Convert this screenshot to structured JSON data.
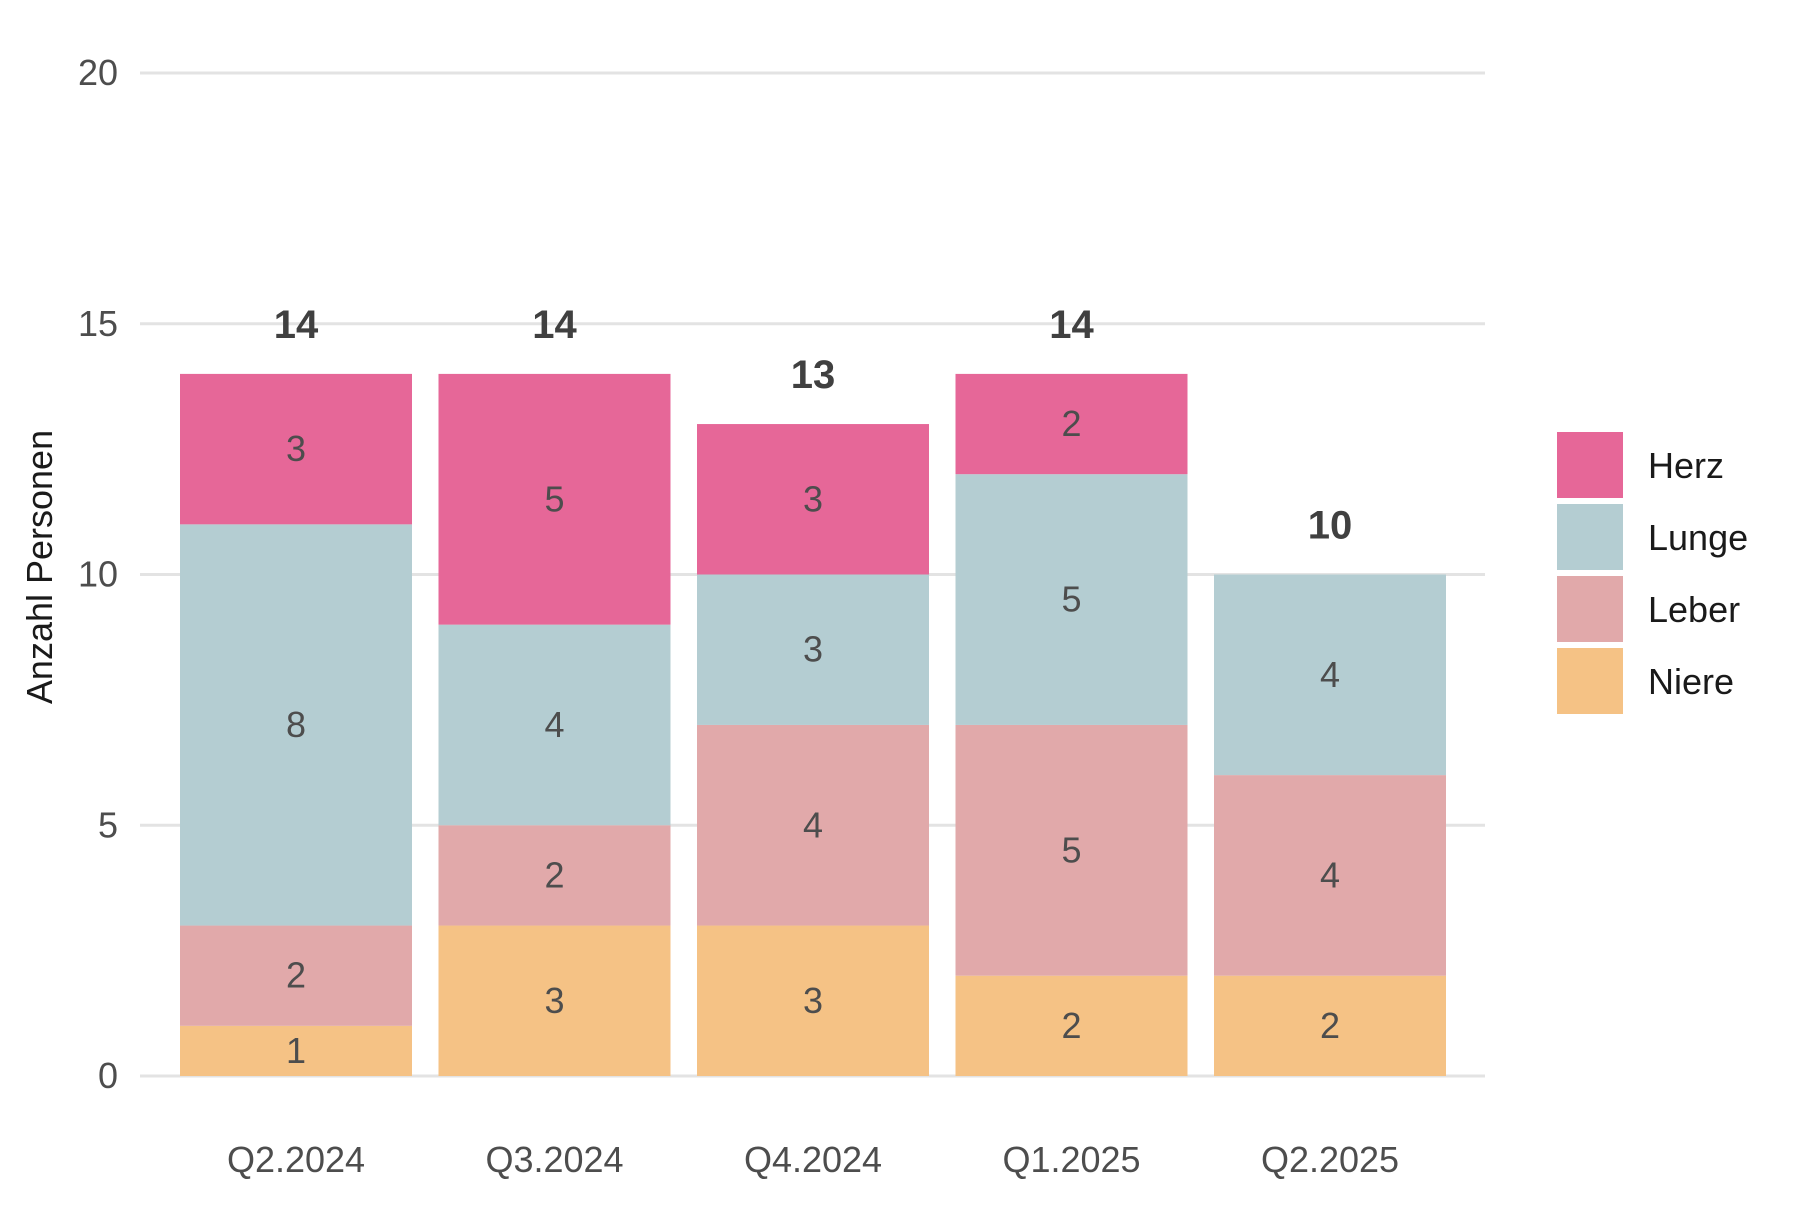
{
  "chart_data": {
    "type": "bar",
    "stacked": true,
    "title": "",
    "xlabel": "",
    "ylabel": "Anzahl Personen",
    "ylim": [
      0,
      20
    ],
    "yticks": [
      0,
      5,
      10,
      15,
      20
    ],
    "grid": "horizontal",
    "legend_position": "right",
    "categories": [
      "Q2.2024",
      "Q3.2024",
      "Q4.2024",
      "Q1.2025",
      "Q2.2025"
    ],
    "series": [
      {
        "name": "Niere",
        "color": "#F5C285",
        "values": [
          1,
          3,
          3,
          2,
          2
        ]
      },
      {
        "name": "Leber",
        "color": "#E1A9AA",
        "values": [
          2,
          2,
          4,
          5,
          4
        ]
      },
      {
        "name": "Lunge",
        "color": "#B4CDD2",
        "values": [
          8,
          4,
          3,
          5,
          4
        ]
      },
      {
        "name": "Herz",
        "color": "#E66798",
        "values": [
          3,
          5,
          3,
          2,
          0
        ]
      }
    ],
    "totals": [
      14,
      14,
      13,
      14,
      10
    ],
    "legend_order": [
      "Herz",
      "Lunge",
      "Leber",
      "Niere"
    ]
  }
}
